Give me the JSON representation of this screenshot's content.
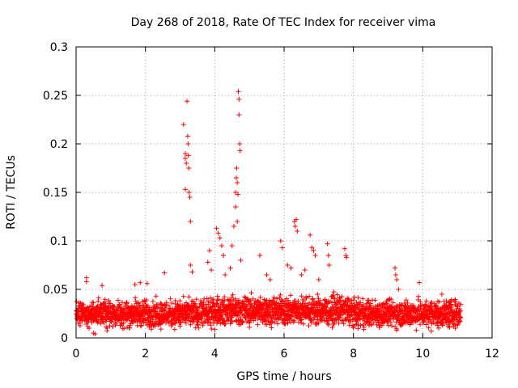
{
  "chart_data": {
    "type": "scatter",
    "title": "Day 268 of 2018, Rate Of TEC Index for receiver vima",
    "xlabel": "GPS time / hours",
    "ylabel": "ROTI / TECUs",
    "xlim": [
      0,
      12
    ],
    "ylim": [
      0,
      0.3
    ],
    "xticks": [
      0,
      2,
      4,
      6,
      8,
      10,
      12
    ],
    "yticks": [
      0,
      0.05,
      0.1,
      0.15,
      0.2,
      0.25,
      0.3
    ],
    "xtick_labels": [
      "0",
      "2",
      "4",
      "6",
      "8",
      "10",
      "12"
    ],
    "ytick_labels": [
      "0",
      "0.05",
      "0.1",
      "0.15",
      "0.2",
      "0.25",
      "0.3"
    ],
    "grid": true,
    "marker": "plus",
    "color": "#ff0000",
    "series": [
      {
        "name": "ROTI",
        "x_range": [
          0.0,
          11.1
        ],
        "baseline_band": [
          0.005,
          0.045
        ],
        "points": [
          [
            0.3,
            0.062
          ],
          [
            0.3,
            0.058
          ],
          [
            0.75,
            0.054
          ],
          [
            1.7,
            0.055
          ],
          [
            1.85,
            0.057
          ],
          [
            2.05,
            0.056
          ],
          [
            2.55,
            0.067
          ],
          [
            3.1,
            0.22
          ],
          [
            3.15,
            0.19
          ],
          [
            3.15,
            0.185
          ],
          [
            3.15,
            0.153
          ],
          [
            3.18,
            0.18
          ],
          [
            3.2,
            0.244
          ],
          [
            3.22,
            0.208
          ],
          [
            3.23,
            0.2
          ],
          [
            3.24,
            0.188
          ],
          [
            3.25,
            0.175
          ],
          [
            3.26,
            0.15
          ],
          [
            3.28,
            0.145
          ],
          [
            3.3,
            0.12
          ],
          [
            3.3,
            0.075
          ],
          [
            3.35,
            0.068
          ],
          [
            3.8,
            0.078
          ],
          [
            3.85,
            0.09
          ],
          [
            3.9,
            0.07
          ],
          [
            4.05,
            0.113
          ],
          [
            4.1,
            0.108
          ],
          [
            4.15,
            0.103
          ],
          [
            4.2,
            0.095
          ],
          [
            4.25,
            0.085
          ],
          [
            4.3,
            0.065
          ],
          [
            4.45,
            0.072
          ],
          [
            4.5,
            0.095
          ],
          [
            4.55,
            0.115
          ],
          [
            4.6,
            0.135
          ],
          [
            4.6,
            0.15
          ],
          [
            4.62,
            0.165
          ],
          [
            4.63,
            0.175
          ],
          [
            4.65,
            0.12
          ],
          [
            4.65,
            0.16
          ],
          [
            4.67,
            0.148
          ],
          [
            4.68,
            0.254
          ],
          [
            4.7,
            0.246
          ],
          [
            4.7,
            0.23
          ],
          [
            4.72,
            0.2
          ],
          [
            4.73,
            0.193
          ],
          [
            4.75,
            0.08
          ],
          [
            5.3,
            0.085
          ],
          [
            5.5,
            0.065
          ],
          [
            5.6,
            0.06
          ],
          [
            5.9,
            0.1
          ],
          [
            5.95,
            0.093
          ],
          [
            6.1,
            0.075
          ],
          [
            6.2,
            0.072
          ],
          [
            6.3,
            0.12
          ],
          [
            6.32,
            0.115
          ],
          [
            6.35,
            0.122
          ],
          [
            6.38,
            0.11
          ],
          [
            6.5,
            0.065
          ],
          [
            6.6,
            0.07
          ],
          [
            6.75,
            0.106
          ],
          [
            6.8,
            0.093
          ],
          [
            6.85,
            0.09
          ],
          [
            6.9,
            0.085
          ],
          [
            7.0,
            0.06
          ],
          [
            7.25,
            0.097
          ],
          [
            7.28,
            0.085
          ],
          [
            7.3,
            0.075
          ],
          [
            7.75,
            0.092
          ],
          [
            7.78,
            0.085
          ],
          [
            7.8,
            0.083
          ],
          [
            9.2,
            0.072
          ],
          [
            9.22,
            0.065
          ],
          [
            9.25,
            0.06
          ],
          [
            9.3,
            0.05
          ],
          [
            9.9,
            0.057
          ],
          [
            10.55,
            0.045
          ],
          [
            0.5,
            0.005
          ],
          [
            0.55,
            0.004
          ],
          [
            0.9,
            0.01
          ],
          [
            3.0,
            0.012
          ],
          [
            5.0,
            0.011
          ],
          [
            8.0,
            0.012
          ],
          [
            11.0,
            0.013
          ]
        ]
      }
    ]
  }
}
